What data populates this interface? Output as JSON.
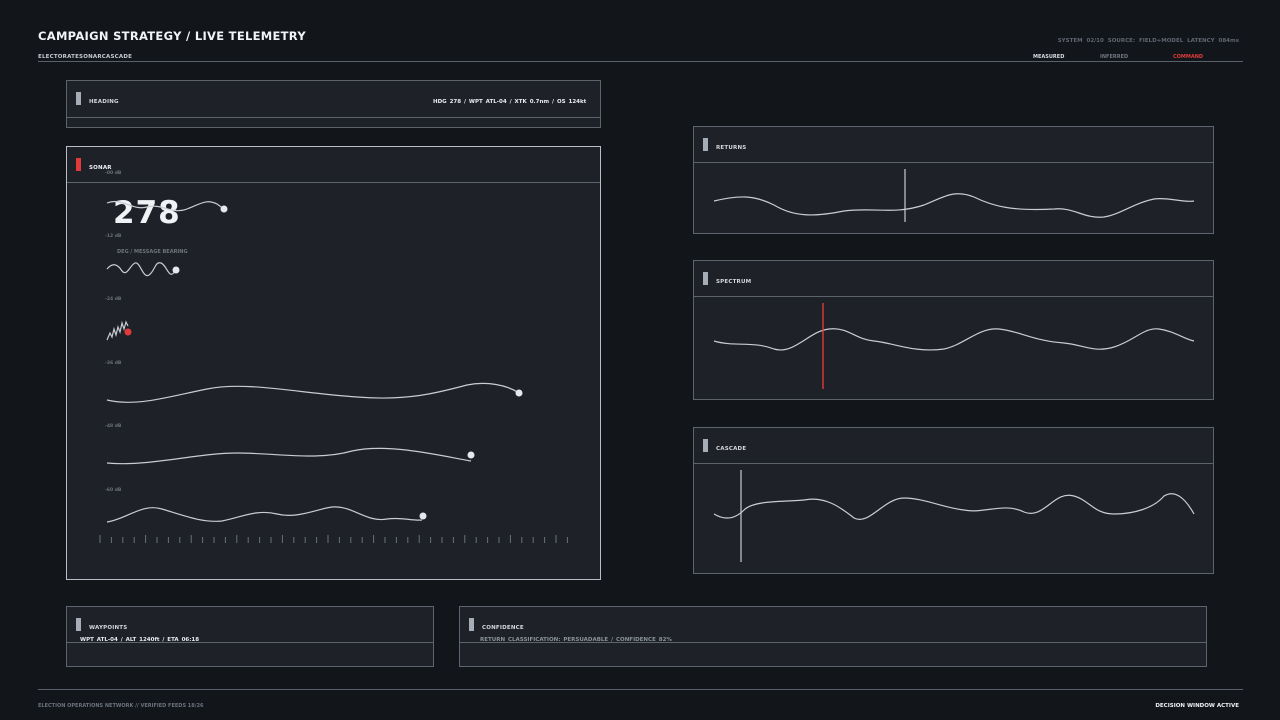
{
  "header": {
    "title": "CAMPAIGN STRATEGY / LIVE TELEMETRY",
    "subtitle": "ELECTORATESONARCASCADE",
    "system_info": "SYSTEM 02/10  SOURCE: FIELD+MODEL  LATENCY 084ms",
    "legend": [
      {
        "label": "MEASURED",
        "color": "#d9dde3"
      },
      {
        "label": "INFERRED",
        "color": "#6f7680"
      },
      {
        "label": "COMMAND",
        "color": "#e03b3b"
      }
    ]
  },
  "panels": {
    "heading": {
      "label": "HEADING",
      "info": "HDG 278  /  WPT ATL-04  /  XTK 0.7nm  /  OS 124kt"
    },
    "sonar": {
      "label": "SONAR",
      "value": "278",
      "caption": "DEG / MESSAGE BEARING",
      "db_labels": [
        "-00 dB",
        "-12 dB",
        "-24 dB",
        "-36 dB",
        "-48 dB",
        "-60 dB"
      ]
    },
    "returns": {
      "label": "RETURNS"
    },
    "spectrum": {
      "label": "SPECTRUM"
    },
    "cascade": {
      "label": "CASCADE"
    },
    "waypoints": {
      "label": "WAYPOINTS",
      "info": "WPT ATL-04  /  ALT 1240ft  /  ETA 06:18"
    },
    "confidence": {
      "label": "CONFIDENCE",
      "info": "RETURN CLASSIFICATION: PERSUADABLE / CONFIDENCE 82%"
    }
  },
  "footer": {
    "left": "ELECTION OPERATIONS NETWORK // VERIFIED FEEDS 18/26",
    "right": "DECISION WINDOW ACTIVE"
  },
  "colors": {
    "accent": "#e03b3b",
    "trace": "#c9cdd3",
    "panel": "#1e2128",
    "background": "#121519"
  }
}
